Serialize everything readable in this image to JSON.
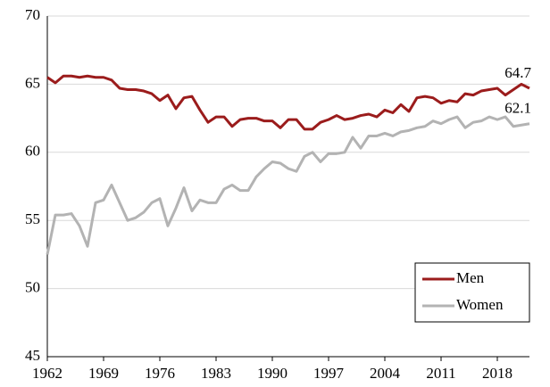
{
  "chart_data": {
    "type": "line",
    "x": [
      1962,
      1963,
      1964,
      1965,
      1966,
      1967,
      1968,
      1969,
      1970,
      1971,
      1972,
      1973,
      1974,
      1975,
      1976,
      1977,
      1978,
      1979,
      1980,
      1981,
      1982,
      1983,
      1984,
      1985,
      1986,
      1987,
      1988,
      1989,
      1990,
      1991,
      1992,
      1993,
      1994,
      1995,
      1996,
      1997,
      1998,
      1999,
      2000,
      2001,
      2002,
      2003,
      2004,
      2005,
      2006,
      2007,
      2008,
      2009,
      2010,
      2011,
      2012,
      2013,
      2014,
      2015,
      2016,
      2017,
      2018,
      2019,
      2020,
      2021,
      2022
    ],
    "series": [
      {
        "name": "Men",
        "color": "#9b1c1c",
        "values": [
          65.5,
          65.1,
          65.6,
          65.6,
          65.5,
          65.6,
          65.5,
          65.5,
          65.3,
          64.7,
          64.6,
          64.6,
          64.5,
          64.3,
          63.8,
          64.2,
          63.2,
          64.0,
          64.1,
          63.1,
          62.2,
          62.6,
          62.6,
          61.9,
          62.4,
          62.5,
          62.5,
          62.3,
          62.3,
          61.8,
          62.4,
          62.4,
          61.7,
          61.7,
          62.2,
          62.4,
          62.7,
          62.4,
          62.5,
          62.7,
          62.8,
          62.6,
          63.1,
          62.9,
          63.5,
          63.0,
          64.0,
          64.1,
          64.0,
          63.6,
          63.8,
          63.7,
          64.3,
          64.2,
          64.5,
          64.6,
          64.7,
          64.2,
          64.6,
          65.0,
          64.7
        ]
      },
      {
        "name": "Women",
        "color": "#b3b3b3",
        "values": [
          52.5,
          55.4,
          55.4,
          55.5,
          54.6,
          53.1,
          56.3,
          56.5,
          57.6,
          56.3,
          55.0,
          55.2,
          55.6,
          56.3,
          56.6,
          54.6,
          55.9,
          57.4,
          55.7,
          56.5,
          56.3,
          56.3,
          57.3,
          57.6,
          57.2,
          57.2,
          58.2,
          58.8,
          59.3,
          59.2,
          58.8,
          58.6,
          59.7,
          60.0,
          59.3,
          59.9,
          59.9,
          60.0,
          61.1,
          60.3,
          61.2,
          61.2,
          61.4,
          61.2,
          61.5,
          61.6,
          61.8,
          61.9,
          62.3,
          62.1,
          62.4,
          62.6,
          61.8,
          62.2,
          62.3,
          62.6,
          62.4,
          62.6,
          61.9,
          62.0,
          62.1
        ]
      }
    ],
    "xlim": [
      1962,
      2022
    ],
    "xticks": [
      1962,
      1969,
      1976,
      1983,
      1990,
      1997,
      2004,
      2011,
      2018
    ],
    "ylim": [
      45,
      70
    ],
    "yticks": [
      45,
      50,
      55,
      60,
      65,
      70
    ],
    "grid": true,
    "legend": "lower right"
  }
}
